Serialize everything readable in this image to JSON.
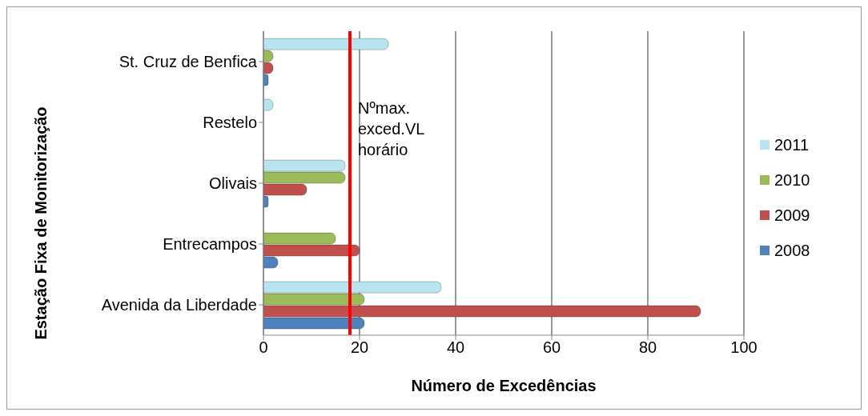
{
  "chart_data": {
    "type": "bar",
    "orientation": "horizontal",
    "xlabel": "Número de Excedências",
    "ylabel": "Estação Fixa de Monitorização",
    "categories": [
      "St. Cruz de Benfica",
      "Restelo",
      "Olivais",
      "Entrecampos",
      "Avenida da Liberdade"
    ],
    "series": [
      {
        "name": "2008",
        "color": "#4f81bd",
        "values": [
          1,
          0,
          1,
          3,
          21
        ]
      },
      {
        "name": "2009",
        "color": "#c0504d",
        "values": [
          2,
          0,
          9,
          20,
          91
        ]
      },
      {
        "name": "2010",
        "color": "#9bbb59",
        "values": [
          2,
          0,
          17,
          15,
          21
        ]
      },
      {
        "name": "2011",
        "color": "#b7e4ee",
        "values": [
          26,
          2,
          17,
          0,
          37
        ]
      }
    ],
    "xlim": [
      0,
      100
    ],
    "xticks": [
      0,
      20,
      40,
      60,
      80,
      100
    ],
    "grid": "x",
    "legend": "right",
    "ref_lines": [
      {
        "axis": "x",
        "value": 18,
        "label": "Nºmax. exced.VL horário",
        "color": "#ff0000"
      }
    ]
  }
}
